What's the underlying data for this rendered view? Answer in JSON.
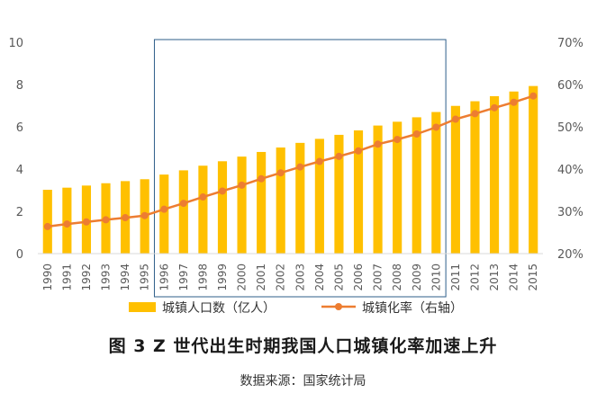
{
  "chart_data": {
    "type": "bar",
    "title": "图 3 Z 世代出生时期我国人口城镇化率加速上升",
    "source": "数据来源：国家统计局",
    "x": [
      "1990",
      "1991",
      "1992",
      "1993",
      "1994",
      "1995",
      "1996",
      "1997",
      "1998",
      "1999",
      "2000",
      "2001",
      "2002",
      "2003",
      "2004",
      "2005",
      "2006",
      "2007",
      "2008",
      "2009",
      "2010",
      "2011",
      "2012",
      "2013",
      "2014",
      "2015"
    ],
    "series": [
      {
        "name": "城镇人口数（亿人）",
        "type": "bar",
        "axis": "left",
        "color": "#FFC000",
        "values": [
          3.02,
          3.12,
          3.22,
          3.33,
          3.43,
          3.52,
          3.74,
          3.94,
          4.16,
          4.37,
          4.59,
          4.81,
          5.02,
          5.24,
          5.43,
          5.62,
          5.83,
          6.06,
          6.24,
          6.45,
          6.7,
          6.99,
          7.21,
          7.45,
          7.67,
          7.93
        ]
      },
      {
        "name": "城镇化率（右轴）",
        "type": "line",
        "axis": "right",
        "color": "#ED7D31",
        "values": [
          26.4,
          27.0,
          27.5,
          28.0,
          28.5,
          29.0,
          30.5,
          31.9,
          33.4,
          34.8,
          36.2,
          37.7,
          39.1,
          40.5,
          41.8,
          43.0,
          44.3,
          45.9,
          47.0,
          48.3,
          49.9,
          51.8,
          53.1,
          54.5,
          55.8,
          57.3
        ]
      }
    ],
    "y_left": {
      "min": 0,
      "max": 10,
      "ticks": [
        "0",
        "2",
        "4",
        "6",
        "8",
        "10"
      ]
    },
    "y_right": {
      "min": 20,
      "max": 70,
      "ticks": [
        "20%",
        "30%",
        "40%",
        "50%",
        "60%",
        "70%"
      ]
    },
    "highlight_range": [
      "1996",
      "2010"
    ],
    "highlight_color": "#2E5E8A",
    "axis_text_color": "#595959",
    "legend_position": "bottom",
    "grid": false
  }
}
